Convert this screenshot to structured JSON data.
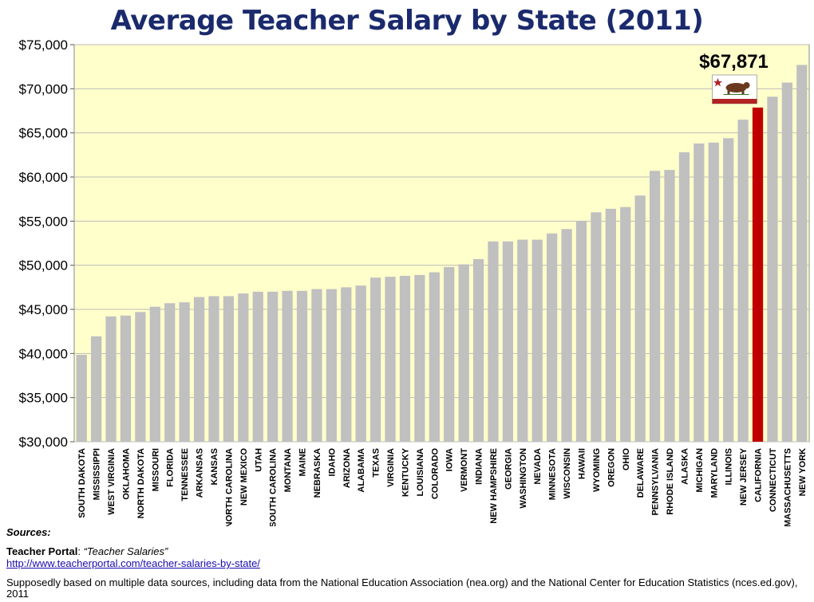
{
  "chart_data": {
    "type": "bar",
    "title": "Average Teacher Salary by State (2011)",
    "xlabel": "",
    "ylabel": "",
    "ylim": [
      30000,
      75000
    ],
    "y_ticks": [
      "$30,000",
      "$35,000",
      "$40,000",
      "$45,000",
      "$50,000",
      "$55,000",
      "$60,000",
      "$65,000",
      "$70,000",
      "$75,000"
    ],
    "grid": true,
    "categories": [
      "SOUTH DAKOTA",
      "MISSISSIPPI",
      "WEST VIRGINIA",
      "OKLAHOMA",
      "NORTH DAKOTA",
      "MISSOURI",
      "FLORIDA",
      "TENNESSEE",
      "ARKANSAS",
      "KANSAS",
      "NORTH CAROLINA",
      "NEW MEXICO",
      "UTAH",
      "SOUTH CAROLINA",
      "MONTANA",
      "MAINE",
      "NEBRASKA",
      "IDAHO",
      "ARIZONA",
      "ALABAMA",
      "TEXAS",
      "VIRGINIA",
      "KENTUCKY",
      "LOUISIANA",
      "COLORADO",
      "IOWA",
      "VERMONT",
      "INDIANA",
      "NEW HAMPSHIRE",
      "GEORGIA",
      "WASHINGTON",
      "NEVADA",
      "MINNESOTA",
      "WISCONSIN",
      "HAWAII",
      "WYOMING",
      "OREGON",
      "OHIO",
      "DELAWARE",
      "PENNSYLVANIA",
      "RHODE ISLAND",
      "ALASKA",
      "MICHIGAN",
      "MARYLAND",
      "ILLINOIS",
      "NEW JERSEY",
      "CALIFORNIA",
      "CONNECTICUT",
      "MASSACHUSETTS",
      "NEW YORK"
    ],
    "values": [
      39850,
      41950,
      44200,
      44300,
      44700,
      45300,
      45700,
      45800,
      46400,
      46500,
      46500,
      46800,
      47000,
      47000,
      47100,
      47100,
      47300,
      47300,
      47500,
      47700,
      48600,
      48700,
      48800,
      48900,
      49200,
      49800,
      50100,
      50700,
      52700,
      52700,
      52900,
      52900,
      53600,
      54100,
      55000,
      56000,
      56400,
      56600,
      57900,
      60700,
      60800,
      62800,
      63800,
      63900,
      64400,
      66500,
      67871,
      69100,
      70700,
      72700
    ],
    "bar_color": "#c0c0c0",
    "highlight": {
      "category": "CALIFORNIA",
      "color": "#c00000",
      "label": "$67,871"
    },
    "plot_background": "#ffffcc"
  },
  "sources": {
    "heading": "Sources:",
    "portal_name": "Teacher Portal",
    "portal_sep": ": ",
    "portal_title": "“Teacher Salaries”",
    "portal_url": "http://www.teacherportal.com/teacher-salaries-by-state/",
    "note": "Supposedly based on multiple data sources, including data from the National Education Association (nea.org) and the National Center for Education Statistics (nces.ed.gov), 2011"
  },
  "flag": {
    "caption": "CALIFORNIA REPUBLIC",
    "icon": "california-flag-icon"
  }
}
